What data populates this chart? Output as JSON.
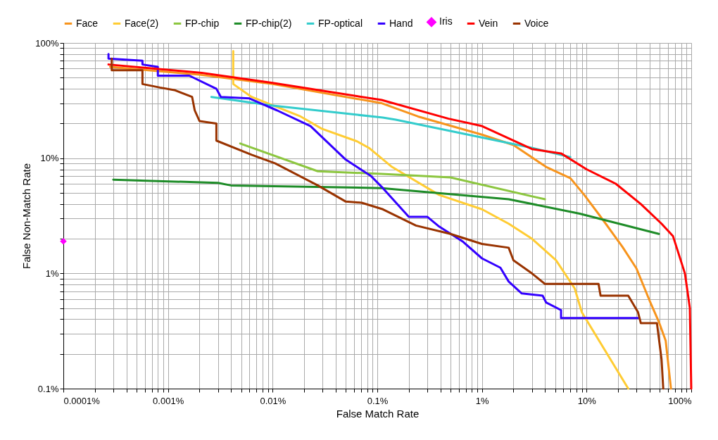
{
  "chart_data": {
    "type": "line",
    "xlabel": "False Match Rate",
    "ylabel": "False Non-Match Rate",
    "log": "xy",
    "grid": true,
    "legend": "top",
    "xlim": [
      0.0001,
      100
    ],
    "ylim": [
      0.1,
      100
    ],
    "xticks": [
      {
        "value": 0.0001,
        "label": "0.0001%"
      },
      {
        "value": 0.0002,
        "label": null
      },
      {
        "value": 0.0003,
        "label": null
      },
      {
        "value": 0.0004,
        "label": null
      },
      {
        "value": 0.0005,
        "label": null
      },
      {
        "value": 0.0006,
        "label": null
      },
      {
        "value": 0.0007,
        "label": null
      },
      {
        "value": 0.0008,
        "label": null
      },
      {
        "value": 0.0009,
        "label": null
      },
      {
        "value": 0.001,
        "label": "0.001%"
      },
      {
        "value": 0.002,
        "label": null
      },
      {
        "value": 0.003,
        "label": null
      },
      {
        "value": 0.004,
        "label": null
      },
      {
        "value": 0.005,
        "label": null
      },
      {
        "value": 0.006,
        "label": null
      },
      {
        "value": 0.007,
        "label": null
      },
      {
        "value": 0.008,
        "label": null
      },
      {
        "value": 0.009,
        "label": null
      },
      {
        "value": 0.01,
        "label": "0.01%"
      },
      {
        "value": 0.02,
        "label": null
      },
      {
        "value": 0.03,
        "label": null
      },
      {
        "value": 0.04,
        "label": null
      },
      {
        "value": 0.05,
        "label": null
      },
      {
        "value": 0.06,
        "label": null
      },
      {
        "value": 0.07,
        "label": null
      },
      {
        "value": 0.08,
        "label": null
      },
      {
        "value": 0.09,
        "label": null
      },
      {
        "value": 0.1,
        "label": "0.1%"
      },
      {
        "value": 0.2,
        "label": null
      },
      {
        "value": 0.3,
        "label": null
      },
      {
        "value": 0.4,
        "label": null
      },
      {
        "value": 0.5,
        "label": null
      },
      {
        "value": 0.6,
        "label": null
      },
      {
        "value": 0.7,
        "label": null
      },
      {
        "value": 0.8,
        "label": null
      },
      {
        "value": 0.9,
        "label": null
      },
      {
        "value": 1,
        "label": "1%"
      },
      {
        "value": 2,
        "label": null
      },
      {
        "value": 3,
        "label": null
      },
      {
        "value": 4,
        "label": null
      },
      {
        "value": 5,
        "label": null
      },
      {
        "value": 6,
        "label": null
      },
      {
        "value": 7,
        "label": null
      },
      {
        "value": 8,
        "label": null
      },
      {
        "value": 9,
        "label": null
      },
      {
        "value": 10,
        "label": "10%"
      },
      {
        "value": 20,
        "label": null
      },
      {
        "value": 30,
        "label": null
      },
      {
        "value": 40,
        "label": null
      },
      {
        "value": 50,
        "label": null
      },
      {
        "value": 60,
        "label": null
      },
      {
        "value": 70,
        "label": null
      },
      {
        "value": 80,
        "label": null
      },
      {
        "value": 90,
        "label": null
      },
      {
        "value": 100,
        "label": "100%"
      }
    ],
    "yticks": [
      {
        "value": 0.1,
        "label": "0.1%"
      },
      {
        "value": 0.2,
        "label": null
      },
      {
        "value": 0.3,
        "label": null
      },
      {
        "value": 0.4,
        "label": null
      },
      {
        "value": 0.5,
        "label": null
      },
      {
        "value": 0.6,
        "label": null
      },
      {
        "value": 0.7,
        "label": null
      },
      {
        "value": 0.8,
        "label": null
      },
      {
        "value": 0.9,
        "label": null
      },
      {
        "value": 1,
        "label": "1%"
      },
      {
        "value": 2,
        "label": null
      },
      {
        "value": 3,
        "label": null
      },
      {
        "value": 4,
        "label": null
      },
      {
        "value": 5,
        "label": null
      },
      {
        "value": 6,
        "label": null
      },
      {
        "value": 7,
        "label": null
      },
      {
        "value": 8,
        "label": null
      },
      {
        "value": 9,
        "label": null
      },
      {
        "value": 10,
        "label": "10%"
      },
      {
        "value": 20,
        "label": null
      },
      {
        "value": 30,
        "label": null
      },
      {
        "value": 40,
        "label": null
      },
      {
        "value": 50,
        "label": null
      },
      {
        "value": 60,
        "label": null
      },
      {
        "value": 70,
        "label": null
      },
      {
        "value": 80,
        "label": null
      },
      {
        "value": 90,
        "label": null
      },
      {
        "value": 100,
        "label": "100%"
      }
    ],
    "series": [
      {
        "name": "Face",
        "color": "#f7941d",
        "x": [
          0.00028,
          0.002,
          0.01,
          0.11,
          0.245,
          1,
          2,
          4.1,
          7,
          9.5,
          14,
          22,
          30,
          40,
          49,
          57,
          64
        ],
        "values": [
          62,
          53,
          44,
          30,
          23,
          16,
          13,
          8.4,
          6.7,
          4.8,
          3.0,
          1.7,
          1.1,
          0.58,
          0.38,
          0.26,
          0.1
        ]
      },
      {
        "name": "Face(2)",
        "color": "#ffcc33",
        "x": [
          0.0042,
          0.0042,
          0.0063,
          0.0185,
          0.0295,
          0.064,
          0.083,
          0.138,
          0.39,
          1,
          1.8,
          3,
          5.1,
          7.7,
          9,
          25
        ],
        "values": [
          85,
          44,
          34,
          23,
          18,
          14,
          12.3,
          8.4,
          4.8,
          3.6,
          2.7,
          2.0,
          1.3,
          0.74,
          0.46,
          0.1
        ]
      },
      {
        "name": "FP-chip",
        "color": "#8cc63f",
        "x": [
          0.0049,
          0.027,
          0.11,
          0.5,
          4
        ],
        "values": [
          13.4,
          7.7,
          7.3,
          6.8,
          4.4
        ]
      },
      {
        "name": "FP-chip(2)",
        "color": "#1e8c28",
        "x": [
          0.0003,
          0.003,
          0.004,
          0.11,
          1.8,
          8.6,
          49
        ],
        "values": [
          6.5,
          6.1,
          5.8,
          5.5,
          4.4,
          3.3,
          2.2
        ]
      },
      {
        "name": "FP-optical",
        "color": "#33cccc",
        "x": [
          0.0026,
          0.01,
          0.113,
          0.15,
          3.0,
          7.0
        ],
        "values": [
          34,
          28.6,
          22.5,
          21.6,
          12.3,
          10.2
        ]
      },
      {
        "name": "Hand",
        "color": "#3300ff",
        "x": [
          0.00027,
          0.00027,
          0.00057,
          0.00057,
          0.0008,
          0.0008,
          0.0016,
          0.0029,
          0.0032,
          0.006,
          0.011,
          0.023,
          0.05,
          0.087,
          0.113,
          0.2,
          0.3,
          0.39,
          0.65,
          1,
          1.5,
          1.8,
          2.4,
          3.8,
          4.1,
          5.7,
          5.7,
          31
        ],
        "values": [
          80,
          73,
          70,
          65,
          62,
          52,
          52,
          40,
          34,
          33,
          26,
          19,
          9.7,
          7.0,
          5.5,
          3.1,
          3.1,
          2.55,
          1.9,
          1.35,
          1.12,
          0.85,
          0.67,
          0.64,
          0.56,
          0.48,
          0.41,
          0.41
        ]
      },
      {
        "name": "Iris",
        "color": "#ff00ff",
        "type": "scatter",
        "marker": "diamond",
        "x": [
          0.0001
        ],
        "values": [
          1.9
        ]
      },
      {
        "name": "Vein",
        "color": "#ff0000",
        "x": [
          0.00027,
          0.0021,
          0.01,
          0.11,
          0.48,
          1,
          3,
          5.7,
          10,
          19,
          33,
          52,
          67,
          87,
          97,
          100
        ],
        "values": [
          65,
          55,
          45,
          32,
          22,
          19,
          12,
          11,
          8,
          6,
          4,
          2.7,
          2.1,
          1,
          0.5,
          0.1
        ]
      },
      {
        "name": "Voice",
        "color": "#993300",
        "x": [
          0.00029,
          0.00029,
          0.00057,
          0.00057,
          0.00084,
          0.00115,
          0.0017,
          0.0018,
          0.002,
          0.0029,
          0.0029,
          0.0063,
          0.0106,
          0.027,
          0.05,
          0.071,
          0.113,
          0.234,
          0.5,
          1.0,
          1.8,
          2.0,
          3.0,
          4.0,
          13,
          13.6,
          25,
          31,
          33,
          47,
          52,
          54
        ],
        "values": [
          73,
          58,
          58,
          44,
          41,
          39,
          34,
          26,
          21,
          20,
          14.2,
          10.7,
          9.0,
          5.8,
          4.2,
          4.1,
          3.6,
          2.6,
          2.2,
          1.8,
          1.67,
          1.3,
          1.0,
          0.81,
          0.81,
          0.64,
          0.64,
          0.46,
          0.37,
          0.37,
          0.18,
          0.1
        ]
      }
    ]
  }
}
